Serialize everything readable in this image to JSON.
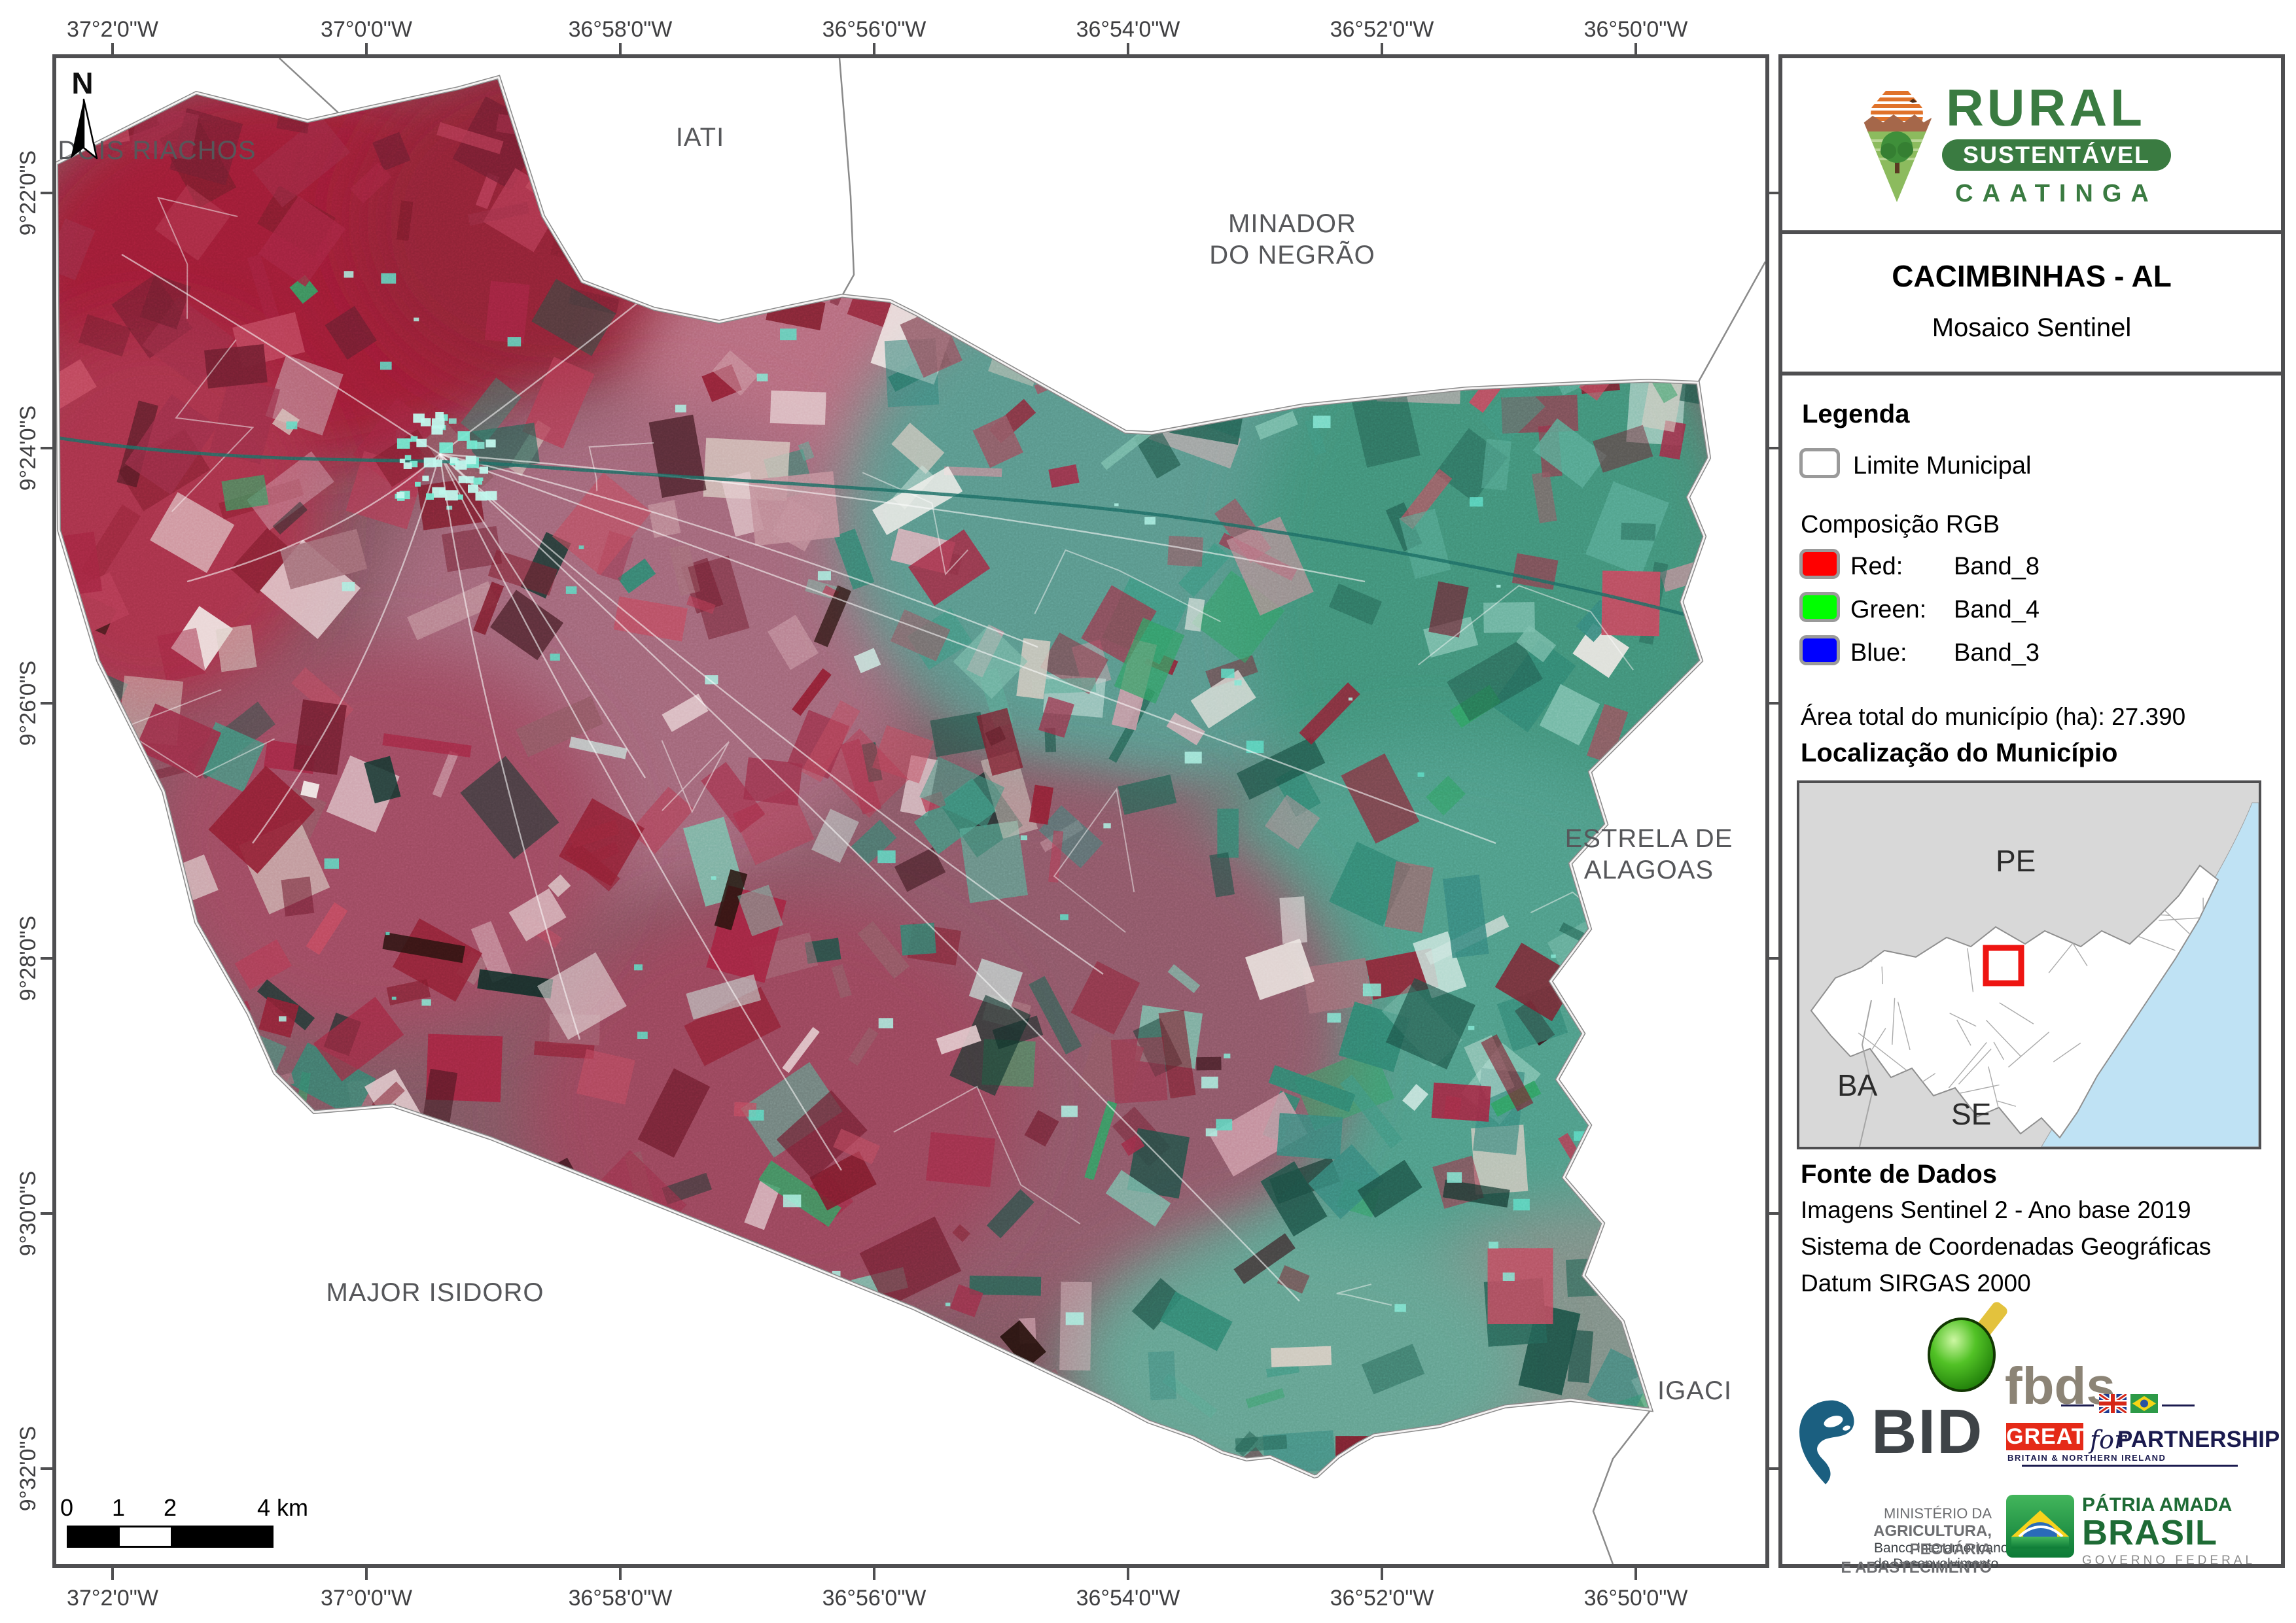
{
  "frame_color": "#4f4f51",
  "map": {
    "north": "N",
    "lon_ticks": [
      "37°2'0\"W",
      "37°0'0\"W",
      "36°58'0\"W",
      "36°56'0\"W",
      "36°54'0\"W",
      "36°52'0\"W",
      "36°50'0\"W"
    ],
    "lat_ticks": [
      "9°22'0\"S",
      "9°24'0\"S",
      "9°26'0\"S",
      "9°28'0\"S",
      "9°30'0\"S",
      "9°32'0\"S"
    ],
    "neighbors": {
      "dois_riachos": "DOIS RIACHOS",
      "iati": "IATI",
      "minador_1": "MINADOR",
      "minador_2": "DO NEGRÃO",
      "estrela_1": "ESTRELA DE",
      "estrela_2": "ALAGOAS",
      "major": "MAJOR ISIDORO",
      "igaci": "IGACI"
    },
    "scalebar": {
      "l0": "0",
      "l1": "1",
      "l2": "2",
      "l4": "4 km"
    }
  },
  "sidebar": {
    "logo": {
      "title": "RURAL",
      "subtitle": "SUSTENTÁVEL",
      "tagline": "CAATINGA",
      "green": "#3a7b41",
      "orange": "#e0722a"
    },
    "title_block": {
      "title": "CACIMBINHAS - AL",
      "subtitle": "Mosaico Sentinel"
    },
    "legend": {
      "heading": "Legenda",
      "limite_label": "Limite Municipal",
      "limite_color": "#ffffff",
      "rgb_heading": "Composição RGB",
      "red_label": "Red:",
      "red_band": "Band_8",
      "red_color": "#ff0000",
      "green_label": "Green:",
      "green_band": "Band_4",
      "green_color": "#00ff00",
      "blue_label": "Blue:",
      "blue_band": "Band_3",
      "blue_color": "#0000ff",
      "area_label": "Área total do município (ha): 27.390"
    },
    "location": {
      "heading": "Localização do Município",
      "pe": "PE",
      "ba": "BA",
      "se": "SE",
      "ocean_color": "#bfe2f4",
      "highlight_color": "#ee1512"
    },
    "fonte": {
      "heading": "Fonte de Dados",
      "line1": "Imagens Sentinel 2 - Ano base 2019",
      "line2": "Sistema de Coordenadas Geográficas",
      "line3": "Datum SIRGAS 2000"
    },
    "partners": {
      "fbds": "fbds",
      "bid_acronym": "BID",
      "bid_line1": "Banco Interamericano",
      "bid_line2": "de Desenvolvimento",
      "bid_blue": "#1b5f80",
      "great_word": "GREAT",
      "great_for": "for",
      "great_partnership": "PARTNERSHIP",
      "great_sub": "BRITAIN & NORTHERN IRELAND",
      "great_red": "#e52a18",
      "great_navy": "#1a1a4e",
      "mapa_line1": "MINISTÉRIO DA",
      "mapa_line2": "AGRICULTURA, PECUÁRIA",
      "mapa_line3": "E ABASTECIMENTO",
      "brasil_line1": "PÁTRIA AMADA",
      "brasil_line2": "BRASIL",
      "brasil_line3": "GOVERNO FEDERAL",
      "brasil_green": "#1e6b35"
    }
  }
}
